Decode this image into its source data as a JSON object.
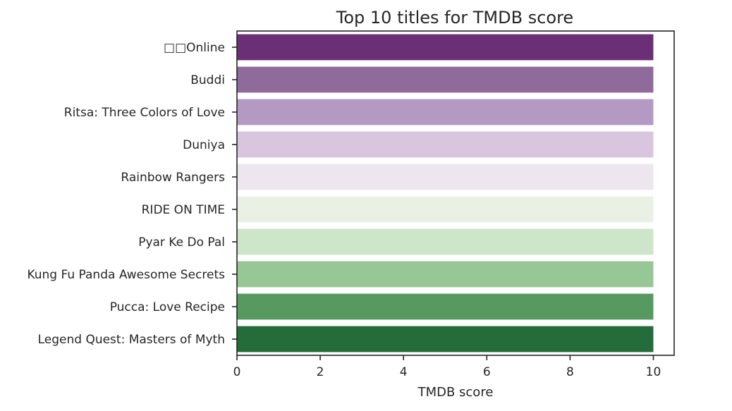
{
  "chart_data": {
    "type": "bar",
    "orientation": "horizontal",
    "title": "Top 10 titles for TMDB score",
    "xlabel": "TMDB score",
    "ylabel": "",
    "xlim": [
      0,
      10.5
    ],
    "xticks": [
      "0",
      "2",
      "4",
      "6",
      "8",
      "10"
    ],
    "grid": false,
    "categories": [
      "□□Online",
      "Buddi",
      "Ritsa: Three Colors of Love",
      "Duniya",
      "Rainbow Rangers",
      "RIDE ON TIME",
      "Pyar Ke Do Pal",
      "Kung Fu Panda Awesome Secrets",
      "Pucca: Love Recipe",
      "Legend Quest: Masters of Myth"
    ],
    "values": [
      10,
      10,
      10,
      10,
      10,
      10,
      10,
      10,
      10,
      10
    ],
    "colors": [
      "#6a2f75",
      "#8f6b9b",
      "#b499c2",
      "#d9c5de",
      "#eee6ef",
      "#e9f1e5",
      "#cde5c8",
      "#97c795",
      "#58995f",
      "#246c39"
    ]
  }
}
